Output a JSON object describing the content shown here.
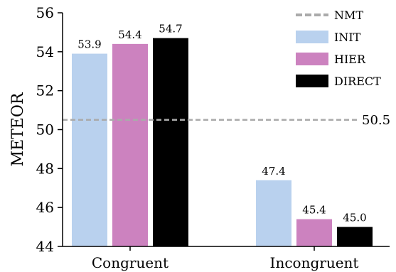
{
  "chart_data": {
    "type": "bar",
    "ylabel": "METEOR",
    "xlabel": "",
    "ylim": [
      44,
      56
    ],
    "yticks": [
      44,
      46,
      48,
      50,
      52,
      54,
      56
    ],
    "categories": [
      "Congruent",
      "Incongruent"
    ],
    "series": [
      {
        "name": "INIT",
        "color": "#b9d1ee",
        "values": [
          53.9,
          47.4
        ],
        "labels": [
          "53.9",
          "47.4"
        ]
      },
      {
        "name": "HIER",
        "color": "#cc82bf",
        "values": [
          54.4,
          45.4
        ],
        "labels": [
          "54.4",
          "45.4"
        ]
      },
      {
        "name": "DIRECT",
        "color": "#000000",
        "values": [
          54.7,
          45.0
        ],
        "labels": [
          "54.7",
          "45.0"
        ]
      }
    ],
    "reference_line": {
      "name": "NMT",
      "value": 50.5,
      "label": "50.5",
      "color": "#aaaaaa",
      "style": "dashed"
    },
    "legend": {
      "placement": "top-right",
      "entries": [
        "NMT",
        "INIT",
        "HIER",
        "DIRECT"
      ]
    },
    "grid": false
  }
}
